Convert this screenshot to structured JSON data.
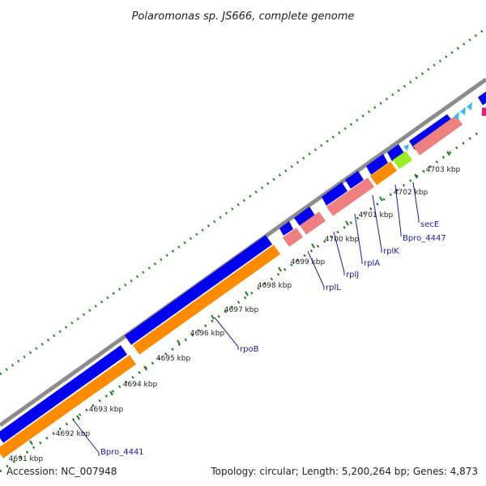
{
  "title": "Polaromonas sp. JS666, complete genome",
  "footer": {
    "accession": "Accession: NC_007948",
    "summary": "Topology: circular; Length: 5,200,264 bp; Genes: 4,873"
  },
  "colors": {
    "backbone": "#8c8c8c",
    "cds": "#0000ee",
    "gene": "#ff8c00",
    "rna": "#ee8080",
    "tick": "#1e7a1e",
    "gc": "#2a8a2a",
    "label": "#1a1aa6",
    "misc": "#99ee22",
    "repeat": "#33bbee",
    "marker": "#ee1a7a"
  },
  "ticks": [
    {
      "label": "4691 kbp"
    },
    {
      "label": "4692 kbp"
    },
    {
      "label": "4693 kbp"
    },
    {
      "label": "4694 kbp"
    },
    {
      "label": "4695 kbp"
    },
    {
      "label": "4696 kbp"
    },
    {
      "label": "4697 kbp"
    },
    {
      "label": "4698 kbp"
    },
    {
      "label": "4699 kbp"
    },
    {
      "label": "4700 kbp"
    },
    {
      "label": "4701 kbp"
    },
    {
      "label": "4702 kbp"
    },
    {
      "label": "4703 kbp"
    }
  ],
  "gene_labels": [
    {
      "text": "Bpro_4441"
    },
    {
      "text": "rpoB"
    },
    {
      "text": "rplL"
    },
    {
      "text": "rplJ"
    },
    {
      "text": "rplA"
    },
    {
      "text": "rplK"
    },
    {
      "text": "Bpro_4447"
    },
    {
      "text": "secE"
    }
  ]
}
